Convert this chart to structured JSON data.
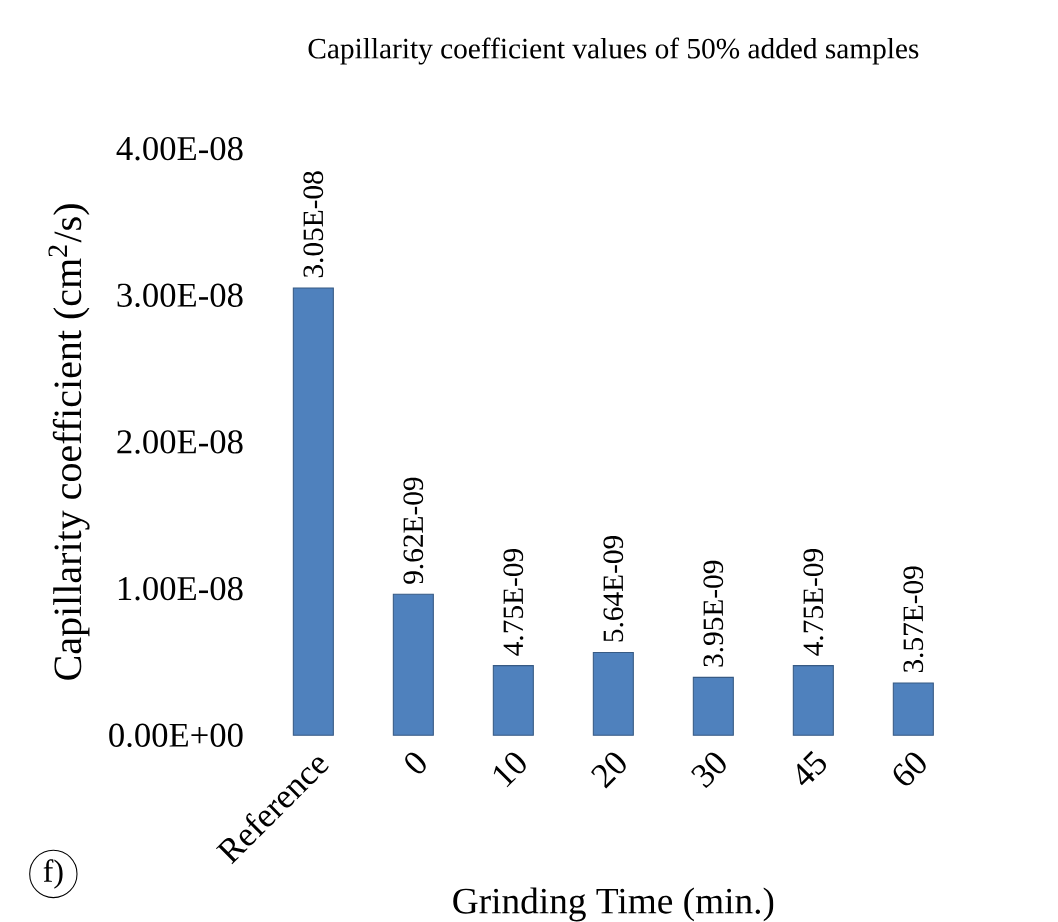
{
  "chart_data": {
    "type": "bar",
    "title": "Capillarity coefficient values of  50% added samples",
    "xlabel": "Grinding Time (min.)",
    "ylabel": "Capillarity coefficient (cm$^{2}$/s)",
    "categories": [
      "Reference",
      "0",
      "10",
      "20",
      "30",
      "45",
      "60"
    ],
    "values": [
      3.05e-08,
      9.62e-09,
      4.75e-09,
      5.64e-09,
      3.95e-09,
      4.75e-09,
      3.57e-09
    ],
    "value_labels": [
      "3.05E-08",
      "9.62E-09",
      "4.75E-09",
      "5.64E-09",
      "3.95E-09",
      "4.75E-09",
      "3.57E-09"
    ],
    "color": "#4f81bd",
    "ylim": [
      0,
      4e-08
    ],
    "yticks": [
      {
        "value": 0,
        "label": "0.00E+00"
      },
      {
        "value": 1e-08,
        "label": "1.00E-08"
      },
      {
        "value": 2e-08,
        "label": "2.00E-08"
      },
      {
        "value": 3e-08,
        "label": "3.00E-08"
      },
      {
        "value": 4e-08,
        "label": "4.00E-08"
      }
    ],
    "annotations": [
      "f)"
    ]
  }
}
